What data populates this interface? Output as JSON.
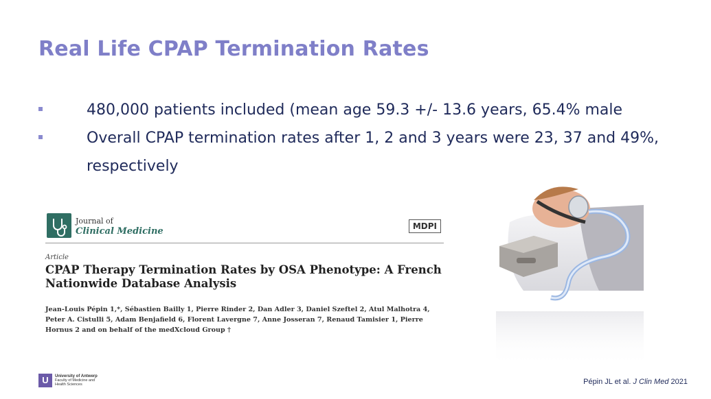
{
  "slide": {
    "title": "Real Life CPAP Termination Rates",
    "bullets": [
      "480,000 patients included (mean age 59.3 +/- 13.6 years, 65.4% male",
      "Overall CPAP termination rates after 1, 2 and 3 years were 23, 37 and 49%,",
      "respectively"
    ]
  },
  "paper": {
    "journal_of": "Journal of",
    "journal_name": "Clinical Medicine",
    "publisher": "MDPI",
    "article_type": "Article",
    "title": "CPAP Therapy Termination Rates by OSA Phenotype: A French Nationwide Database Analysis",
    "authors": "Jean-Louis Pépin 1,*, Sébastien Bailly 1, Pierre Rinder 2, Dan Adler 3, Daniel Szeftel 2, Atul Malhotra 4, Peter A. Cistulli 5, Adam Benjafield 6, Florent Lavergne 7, Anne Josseran 7, Renaud Tamisier 1, Pierre Hornus 2 and on behalf of the medXcloud Group †"
  },
  "footer": {
    "citation_authors": "Pépin JL et al.",
    "citation_journal": "J Clin Med",
    "citation_year": "2021",
    "university_line1": "University of Antwerp",
    "university_line2": "Faculty of Medicine and",
    "university_line3": "Health Sciences"
  },
  "colors": {
    "title": "#7f7fc8",
    "body_text": "#1f2a5a",
    "journal_accent": "#2f6e63"
  }
}
